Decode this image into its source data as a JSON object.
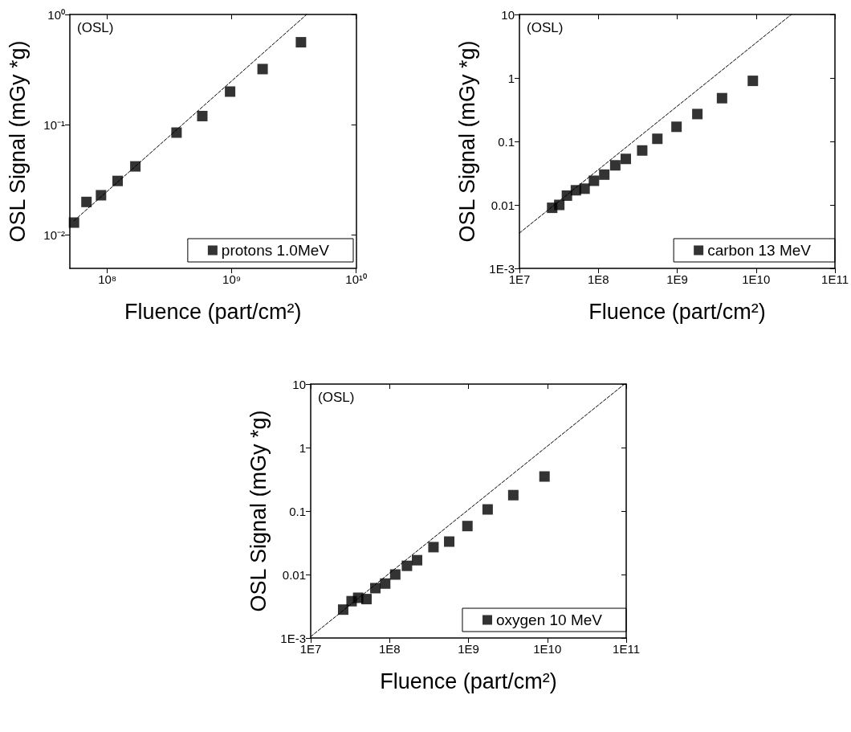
{
  "chart_data": [
    {
      "type": "scatter",
      "xlabel": "Fluence (part/cm²)",
      "ylabel": "OSL Signal (mGy *g)",
      "annotations": [
        "(OSL)"
      ],
      "log": "xy",
      "marker": "square",
      "legend": "bottom right",
      "xlim": [
        50000000,
        10000000000
      ],
      "xticks": [
        {
          "value": 100000000,
          "label": "10⁸"
        },
        {
          "value": 1000000000,
          "label": "10⁹"
        },
        {
          "value": 10000000000,
          "label": "10¹⁰"
        }
      ],
      "ylim": [
        0.005,
        1
      ],
      "yticks": [
        {
          "value": 0.01,
          "label": "10⁻²"
        },
        {
          "value": 0.1,
          "label": "10⁻¹"
        },
        {
          "value": 1,
          "label": "10⁰"
        }
      ],
      "series": [
        {
          "type": "line",
          "color": "#000000",
          "line_style": "dashed",
          "marker": "none",
          "x": [
            54000000,
            4000000000
          ],
          "values": [
            0.0135,
            1
          ]
        },
        {
          "name": "protons 1.0MeV",
          "color": "#000000",
          "x": [
            54000000,
            68000000,
            89000000,
            121000000,
            168000000,
            360000000,
            580000000,
            970000000,
            1770000000,
            3600000000
          ],
          "values": [
            0.013,
            0.02,
            0.023,
            0.031,
            0.042,
            0.085,
            0.12,
            0.2,
            0.32,
            0.56
          ]
        }
      ]
    },
    {
      "type": "scatter",
      "xlabel": "Fluence (part/cm²)",
      "ylabel": "OSL Signal (mGy *g)",
      "annotations": [
        "(OSL)"
      ],
      "log": "xy",
      "marker": "square",
      "legend": "bottom right",
      "xlim": [
        10000000,
        100000000000
      ],
      "xticks": [
        {
          "value": 10000000,
          "label": "1E7"
        },
        {
          "value": 100000000,
          "label": "1E8"
        },
        {
          "value": 1000000000,
          "label": "1E9"
        },
        {
          "value": 10000000000,
          "label": "1E10"
        },
        {
          "value": 100000000000,
          "label": "1E11"
        }
      ],
      "ylim": [
        0.001,
        10
      ],
      "yticks": [
        {
          "value": 0.001,
          "label": "1E-3"
        },
        0.01,
        0.1,
        1,
        10
      ],
      "series": [
        {
          "type": "line",
          "color": "#000000",
          "line_style": "dashed",
          "marker": "none",
          "x": [
            10000000,
            28000000000
          ],
          "values": [
            0.0036,
            10
          ]
        },
        {
          "name": "carbon 13 MeV",
          "color": "#000000",
          "x": [
            26000000,
            32000000,
            40000000,
            52000000,
            67000000,
            88000000,
            119000000,
            164000000,
            223000000,
            360000000,
            560000000,
            980000000,
            1800000000,
            3700000000,
            9100000000
          ],
          "values": [
            0.009,
            0.01,
            0.014,
            0.017,
            0.018,
            0.024,
            0.03,
            0.042,
            0.053,
            0.072,
            0.11,
            0.17,
            0.27,
            0.48,
            0.9
          ]
        }
      ]
    },
    {
      "type": "scatter",
      "xlabel": "Fluence (part/cm²)",
      "ylabel": "OSL Signal (mGy *g)",
      "annotations": [
        "(OSL)"
      ],
      "log": "xy",
      "marker": "square",
      "legend": "bottom right",
      "xlim": [
        10000000,
        100000000000
      ],
      "xticks": [
        {
          "value": 10000000,
          "label": "1E7"
        },
        {
          "value": 100000000,
          "label": "1E8"
        },
        {
          "value": 1000000000,
          "label": "1E9"
        },
        {
          "value": 10000000000,
          "label": "1E10"
        },
        {
          "value": 100000000000,
          "label": "1E11"
        }
      ],
      "ylim": [
        0.001,
        10
      ],
      "yticks": [
        {
          "value": 0.001,
          "label": "1E-3"
        },
        0.01,
        0.1,
        1,
        10
      ],
      "series": [
        {
          "type": "line",
          "color": "#000000",
          "line_style": "dashed",
          "marker": "none",
          "x": [
            10000000,
            95000000000
          ],
          "values": [
            0.00105,
            10
          ]
        },
        {
          "name": "oxygen 10 MeV",
          "color": "#000000",
          "x": [
            25800000,
            33000000,
            40000000,
            51000000,
            66000000,
            88000000,
            118000000,
            166000000,
            223000000,
            360000000,
            570000000,
            970000000,
            1750000000,
            3700000000,
            9200000000
          ],
          "values": [
            0.0028,
            0.0038,
            0.0043,
            0.0041,
            0.0061,
            0.0072,
            0.01,
            0.0137,
            0.0168,
            0.027,
            0.033,
            0.058,
            0.106,
            0.178,
            0.35
          ]
        }
      ]
    }
  ]
}
